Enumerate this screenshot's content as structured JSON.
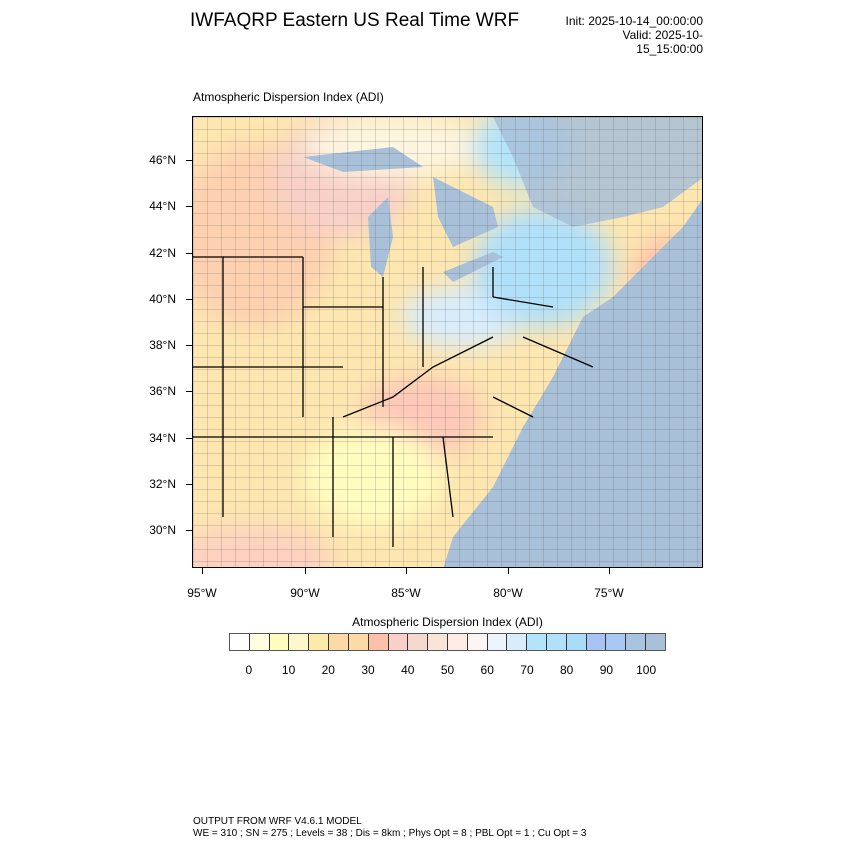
{
  "header": {
    "title": "IWFAQRP Eastern US Real Time WRF",
    "init": "Init: 2025-10-14_00:00:00",
    "valid": "Valid: 2025-10-15_15:00:00"
  },
  "map": {
    "subtitle": "Atmospheric Dispersion Index   (ADI)",
    "lat_labels": [
      "46°N",
      "44°N",
      "42°N",
      "40°N",
      "38°N",
      "36°N",
      "34°N",
      "32°N",
      "30°N"
    ],
    "lon_labels": [
      "95°W",
      "90°W",
      "85°W",
      "80°W",
      "75°W"
    ],
    "ocean_color": "#a8c0d8",
    "land_color": "#fde6b0"
  },
  "colorbar": {
    "title": "Atmospheric Dispersion Index  (ADI)",
    "labels": [
      "0",
      "10",
      "20",
      "30",
      "40",
      "50",
      "60",
      "70",
      "80",
      "90",
      "100"
    ],
    "colors": [
      "#ffffff",
      "#fffde0",
      "#fffcc0",
      "#fdf7cc",
      "#fdeaaa",
      "#fdd9a8",
      "#fddba8",
      "#fdc0aa",
      "#f8d0c8",
      "#f6d8d0",
      "#f8e4d8",
      "#fdebe4",
      "#fdf5f4",
      "#eef4fc",
      "#d8ecfc",
      "#b4e4fa",
      "#b0e0fa",
      "#aadcf8",
      "#a8c4f4",
      "#a8c8f4",
      "#a8c4e0",
      "#a8c0d8"
    ]
  },
  "footer": {
    "line1": "OUTPUT FROM WRF V4.6.1 MODEL",
    "line2": "WE = 310 ; SN = 275 ; Levels = 38 ; Dis = 8km ; Phys Opt = 8 ; PBL Opt = 1 ; Cu Opt = 3"
  }
}
